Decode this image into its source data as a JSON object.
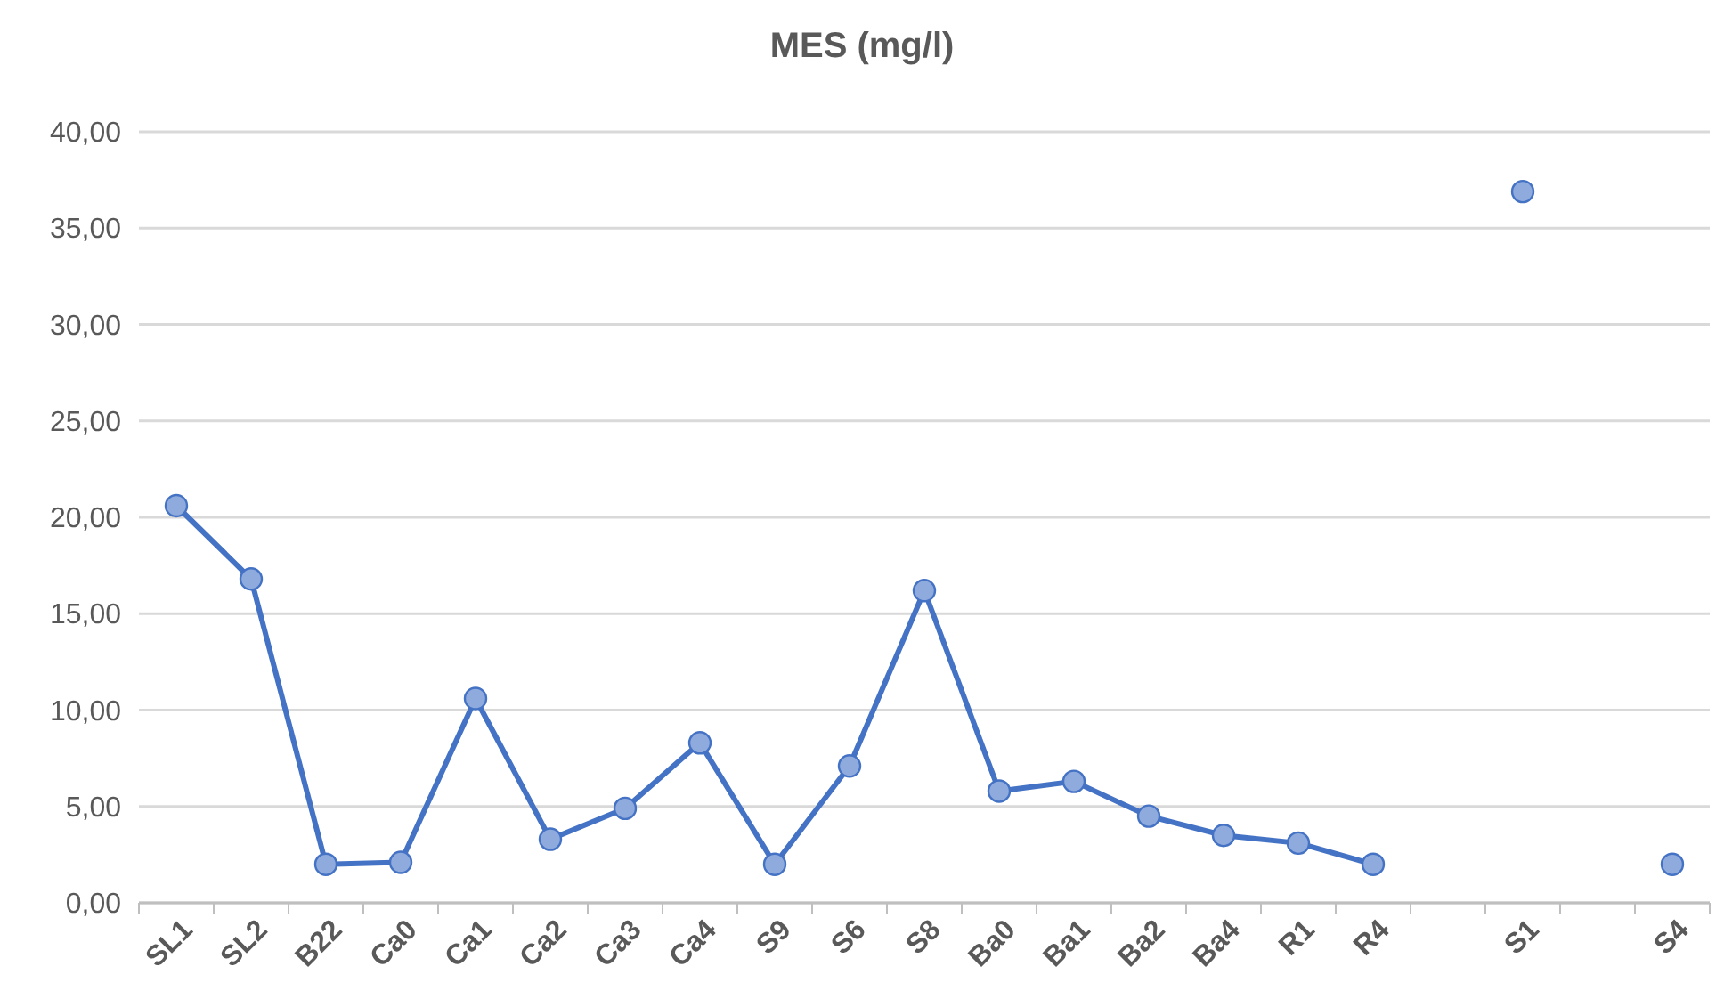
{
  "chart_data": {
    "type": "line",
    "title": "MES (mg/l)",
    "categories": [
      "SL1",
      "SL2",
      "B22",
      "Ca0",
      "Ca1",
      "Ca2",
      "Ca3",
      "Ca4",
      "S9",
      "S6",
      "S8",
      "Ba0",
      "Ba1",
      "Ba2",
      "Ba4",
      "R1",
      "R4",
      null,
      "S1",
      null,
      "S4"
    ],
    "series": [
      {
        "color": "#4472c4",
        "values": [
          20.6,
          16.8,
          2.0,
          2.1,
          10.6,
          3.3,
          4.9,
          8.3,
          2.0,
          7.1,
          16.2,
          5.8,
          6.3,
          4.5,
          3.5,
          3.1,
          2.0,
          null,
          36.9,
          null,
          2.0
        ]
      }
    ],
    "ylim": [
      0,
      40
    ],
    "yticks": [
      {
        "value": 0,
        "label": "0,00"
      },
      {
        "value": 5,
        "label": "5,00"
      },
      {
        "value": 10,
        "label": "10,00"
      },
      {
        "value": 15,
        "label": "15,00"
      },
      {
        "value": 20,
        "label": "20,00"
      },
      {
        "value": 25,
        "label": "25,00"
      },
      {
        "value": 30,
        "label": "30,00"
      },
      {
        "value": 35,
        "label": "35,00"
      },
      {
        "value": 40,
        "label": "40,00"
      }
    ],
    "grid": "y",
    "marker": "circle",
    "line_style": "solid"
  }
}
